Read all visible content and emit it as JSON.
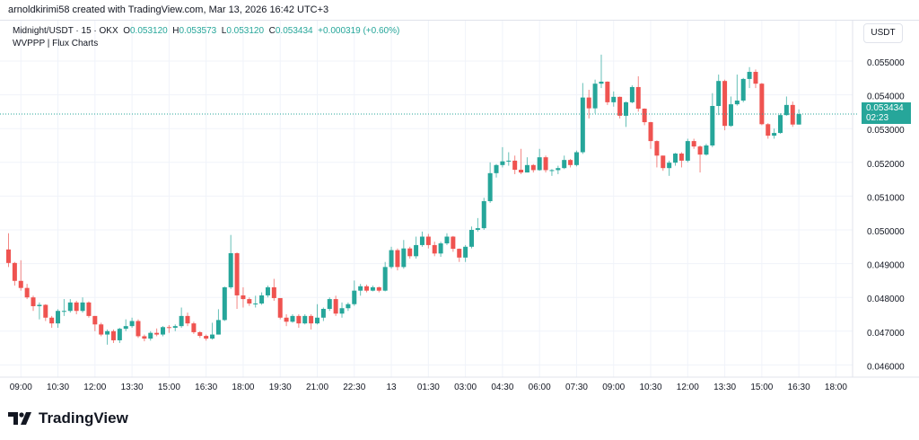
{
  "credit": "arnoldkirimi58 created with TradingView.com, Mar 13, 2026 16:42 UTC+3",
  "legend": {
    "symbol": "Midnight/USDT · 15 · OKX",
    "o_label": "O",
    "o": "0.053120",
    "h_label": "H",
    "h": "0.053573",
    "l_label": "L",
    "l": "0.053120",
    "c_label": "C",
    "c": "0.053434",
    "change": "+0.000319 (+0.60%)",
    "indicator": "WVPPP | Flux Charts"
  },
  "price_axis": {
    "unit": "USDT",
    "ticks": [
      "0.055000",
      "0.054000",
      "0.053000",
      "0.052000",
      "0.051000",
      "0.050000",
      "0.049000",
      "0.048000",
      "0.047000",
      "0.046000"
    ],
    "last_price": "0.053434",
    "countdown": "02:23"
  },
  "time_axis": {
    "ticks": [
      "09:00",
      "10:30",
      "12:00",
      "13:30",
      "15:00",
      "16:30",
      "18:00",
      "19:30",
      "21:00",
      "22:30",
      "13",
      "01:30",
      "03:00",
      "04:30",
      "06:00",
      "07:30",
      "09:00",
      "10:30",
      "12:00",
      "13:30",
      "15:00",
      "16:30",
      "18:00"
    ]
  },
  "colors": {
    "up": "#26a69a",
    "down": "#ef5350",
    "grid": "#f0f3fa"
  },
  "logo": {
    "text": "TradingView"
  },
  "chart_data": {
    "type": "candlestick",
    "interval": "15",
    "ylim": [
      0.0456,
      0.0557
    ],
    "candles": [
      [
        0.04942,
        0.0499,
        0.0489,
        0.04902
      ],
      [
        0.04902,
        0.04905,
        0.04835,
        0.04849
      ],
      [
        0.04849,
        0.0491,
        0.0482,
        0.04828
      ],
      [
        0.04828,
        0.0484,
        0.04795,
        0.048
      ],
      [
        0.048,
        0.04805,
        0.0476,
        0.04774
      ],
      [
        0.04774,
        0.04785,
        0.04735,
        0.04778
      ],
      [
        0.04778,
        0.0478,
        0.0473,
        0.0474
      ],
      [
        0.0474,
        0.04745,
        0.0471,
        0.04723
      ],
      [
        0.04723,
        0.04765,
        0.0471,
        0.0476
      ],
      [
        0.0476,
        0.04795,
        0.04745,
        0.0476
      ],
      [
        0.0476,
        0.04795,
        0.04755,
        0.04785
      ],
      [
        0.04785,
        0.0479,
        0.0475,
        0.0476
      ],
      [
        0.0476,
        0.048,
        0.04755,
        0.04785
      ],
      [
        0.04785,
        0.04788,
        0.0474,
        0.04745
      ],
      [
        0.04745,
        0.04745,
        0.047,
        0.0472
      ],
      [
        0.0472,
        0.04725,
        0.04685,
        0.0469
      ],
      [
        0.0469,
        0.04705,
        0.0466,
        0.047
      ],
      [
        0.047,
        0.04705,
        0.04665,
        0.04673
      ],
      [
        0.04673,
        0.0471,
        0.04665,
        0.04707
      ],
      [
        0.04707,
        0.04735,
        0.047,
        0.04715
      ],
      [
        0.04715,
        0.0474,
        0.0471,
        0.0473
      ],
      [
        0.0473,
        0.04735,
        0.0468,
        0.04685
      ],
      [
        0.04685,
        0.0469,
        0.0467,
        0.04678
      ],
      [
        0.04678,
        0.047,
        0.04672,
        0.04695
      ],
      [
        0.04695,
        0.04708,
        0.04685,
        0.0469
      ],
      [
        0.0469,
        0.04715,
        0.04685,
        0.04712
      ],
      [
        0.04712,
        0.04718,
        0.04695,
        0.0471
      ],
      [
        0.0471,
        0.0472,
        0.047,
        0.04715
      ],
      [
        0.04715,
        0.0477,
        0.0471,
        0.04745
      ],
      [
        0.04745,
        0.04755,
        0.04715,
        0.04723
      ],
      [
        0.04723,
        0.04728,
        0.04692,
        0.04697
      ],
      [
        0.04697,
        0.047,
        0.0468,
        0.04686
      ],
      [
        0.04686,
        0.0469,
        0.04672,
        0.04678
      ],
      [
        0.04678,
        0.04725,
        0.04675,
        0.0469
      ],
      [
        0.0469,
        0.04765,
        0.0469,
        0.04733
      ],
      [
        0.04733,
        0.04832,
        0.0473,
        0.0483
      ],
      [
        0.0483,
        0.04985,
        0.04825,
        0.04931
      ],
      [
        0.04931,
        0.04933,
        0.04766,
        0.04806
      ],
      [
        0.04806,
        0.0483,
        0.0477,
        0.04795
      ],
      [
        0.04795,
        0.048,
        0.04775,
        0.04782
      ],
      [
        0.04782,
        0.04805,
        0.0477,
        0.04782
      ],
      [
        0.04782,
        0.04815,
        0.04778,
        0.04806
      ],
      [
        0.04806,
        0.04835,
        0.048,
        0.0483
      ],
      [
        0.0483,
        0.04855,
        0.0479,
        0.04798
      ],
      [
        0.04798,
        0.04798,
        0.04735,
        0.0474
      ],
      [
        0.0474,
        0.0475,
        0.04715,
        0.04728
      ],
      [
        0.04728,
        0.0475,
        0.04725,
        0.04745
      ],
      [
        0.04745,
        0.0475,
        0.0471,
        0.04723
      ],
      [
        0.04723,
        0.0475,
        0.0472,
        0.04745
      ],
      [
        0.04745,
        0.0475,
        0.04705,
        0.04723
      ],
      [
        0.04723,
        0.0478,
        0.0472,
        0.0474
      ],
      [
        0.0474,
        0.0477,
        0.0473,
        0.04766
      ],
      [
        0.04766,
        0.048,
        0.0476,
        0.04795
      ],
      [
        0.04795,
        0.04805,
        0.04745,
        0.04752
      ],
      [
        0.04752,
        0.04785,
        0.0474,
        0.04768
      ],
      [
        0.04768,
        0.04785,
        0.0476,
        0.0478
      ],
      [
        0.0478,
        0.0485,
        0.04775,
        0.0482
      ],
      [
        0.0482,
        0.0484,
        0.04805,
        0.04833
      ],
      [
        0.04833,
        0.04838,
        0.04815,
        0.0482
      ],
      [
        0.0482,
        0.04835,
        0.04818,
        0.0483
      ],
      [
        0.0483,
        0.04832,
        0.04815,
        0.0482
      ],
      [
        0.0482,
        0.04905,
        0.04818,
        0.0489
      ],
      [
        0.0489,
        0.0495,
        0.04885,
        0.0494
      ],
      [
        0.0494,
        0.04945,
        0.0488,
        0.0489
      ],
      [
        0.0489,
        0.0497,
        0.04885,
        0.04945
      ],
      [
        0.04945,
        0.0495,
        0.04915,
        0.04922
      ],
      [
        0.04922,
        0.0498,
        0.04915,
        0.04955
      ],
      [
        0.04955,
        0.04995,
        0.0495,
        0.0498
      ],
      [
        0.0498,
        0.04988,
        0.04945,
        0.04955
      ],
      [
        0.04955,
        0.04965,
        0.04922,
        0.0493
      ],
      [
        0.0493,
        0.04965,
        0.0492,
        0.0496
      ],
      [
        0.0496,
        0.0499,
        0.04955,
        0.0498
      ],
      [
        0.0498,
        0.04982,
        0.04935,
        0.04944
      ],
      [
        0.04944,
        0.04945,
        0.04905,
        0.04918
      ],
      [
        0.04918,
        0.04955,
        0.04905,
        0.0495
      ],
      [
        0.0495,
        0.0501,
        0.04945,
        0.05
      ],
      [
        0.05,
        0.05035,
        0.04995,
        0.05005
      ],
      [
        0.05005,
        0.05095,
        0.05,
        0.05085
      ],
      [
        0.05085,
        0.052,
        0.0508,
        0.05168
      ],
      [
        0.05168,
        0.05195,
        0.05155,
        0.05192
      ],
      [
        0.05192,
        0.05245,
        0.05185,
        0.05203
      ],
      [
        0.05203,
        0.0523,
        0.0519,
        0.05205
      ],
      [
        0.05205,
        0.0522,
        0.05165,
        0.05178
      ],
      [
        0.05178,
        0.0524,
        0.05165,
        0.0517
      ],
      [
        0.0517,
        0.05215,
        0.0517,
        0.05192
      ],
      [
        0.05192,
        0.05195,
        0.0517,
        0.05177
      ],
      [
        0.05177,
        0.0524,
        0.05175,
        0.05215
      ],
      [
        0.05215,
        0.0522,
        0.0517,
        0.05177
      ],
      [
        0.05177,
        0.0518,
        0.0516,
        0.05177
      ],
      [
        0.05177,
        0.0519,
        0.05165,
        0.05183
      ],
      [
        0.05183,
        0.0522,
        0.0518,
        0.05207
      ],
      [
        0.05207,
        0.0521,
        0.05185,
        0.05192
      ],
      [
        0.05192,
        0.05235,
        0.05188,
        0.0523
      ],
      [
        0.0523,
        0.05435,
        0.05225,
        0.05392
      ],
      [
        0.05392,
        0.05415,
        0.0533,
        0.0536
      ],
      [
        0.0536,
        0.05445,
        0.05345,
        0.05433
      ],
      [
        0.05433,
        0.05519,
        0.0542,
        0.05439
      ],
      [
        0.05439,
        0.0544,
        0.0537,
        0.05378
      ],
      [
        0.05378,
        0.0541,
        0.05365,
        0.05394
      ],
      [
        0.05394,
        0.05395,
        0.0533,
        0.05338
      ],
      [
        0.05338,
        0.0538,
        0.05305,
        0.05378
      ],
      [
        0.05378,
        0.05428,
        0.05375,
        0.05423
      ],
      [
        0.05423,
        0.05455,
        0.0535,
        0.05359
      ],
      [
        0.05359,
        0.0536,
        0.0531,
        0.05319
      ],
      [
        0.05319,
        0.0532,
        0.0524,
        0.05263
      ],
      [
        0.05263,
        0.05265,
        0.05185,
        0.0522
      ],
      [
        0.0522,
        0.0522,
        0.05175,
        0.05183
      ],
      [
        0.05183,
        0.05205,
        0.0516,
        0.05199
      ],
      [
        0.05199,
        0.05228,
        0.0519,
        0.05226
      ],
      [
        0.05226,
        0.0523,
        0.05185,
        0.05205
      ],
      [
        0.05205,
        0.0527,
        0.052,
        0.05263
      ],
      [
        0.05263,
        0.0527,
        0.0524,
        0.05247
      ],
      [
        0.05247,
        0.0525,
        0.0517,
        0.05223
      ],
      [
        0.05223,
        0.05255,
        0.0522,
        0.0525
      ],
      [
        0.0525,
        0.05405,
        0.05245,
        0.05367
      ],
      [
        0.05367,
        0.0546,
        0.0534,
        0.05441
      ],
      [
        0.05441,
        0.05445,
        0.05295,
        0.05308
      ],
      [
        0.05308,
        0.05395,
        0.05305,
        0.05372
      ],
      [
        0.05372,
        0.0546,
        0.05368,
        0.05383
      ],
      [
        0.05383,
        0.0545,
        0.05378,
        0.05447
      ],
      [
        0.05447,
        0.05482,
        0.0542,
        0.05468
      ],
      [
        0.05468,
        0.05475,
        0.0542,
        0.05433
      ],
      [
        0.05433,
        0.05435,
        0.0531,
        0.05313
      ],
      [
        0.05313,
        0.05316,
        0.0527,
        0.05279
      ],
      [
        0.05279,
        0.053,
        0.0527,
        0.05287
      ],
      [
        0.05287,
        0.05345,
        0.05285,
        0.0534
      ],
      [
        0.0534,
        0.05395,
        0.05338,
        0.0537
      ],
      [
        0.0537,
        0.0538,
        0.05305,
        0.05312
      ],
      [
        0.05312,
        0.05357,
        0.05312,
        0.05343
      ]
    ]
  }
}
